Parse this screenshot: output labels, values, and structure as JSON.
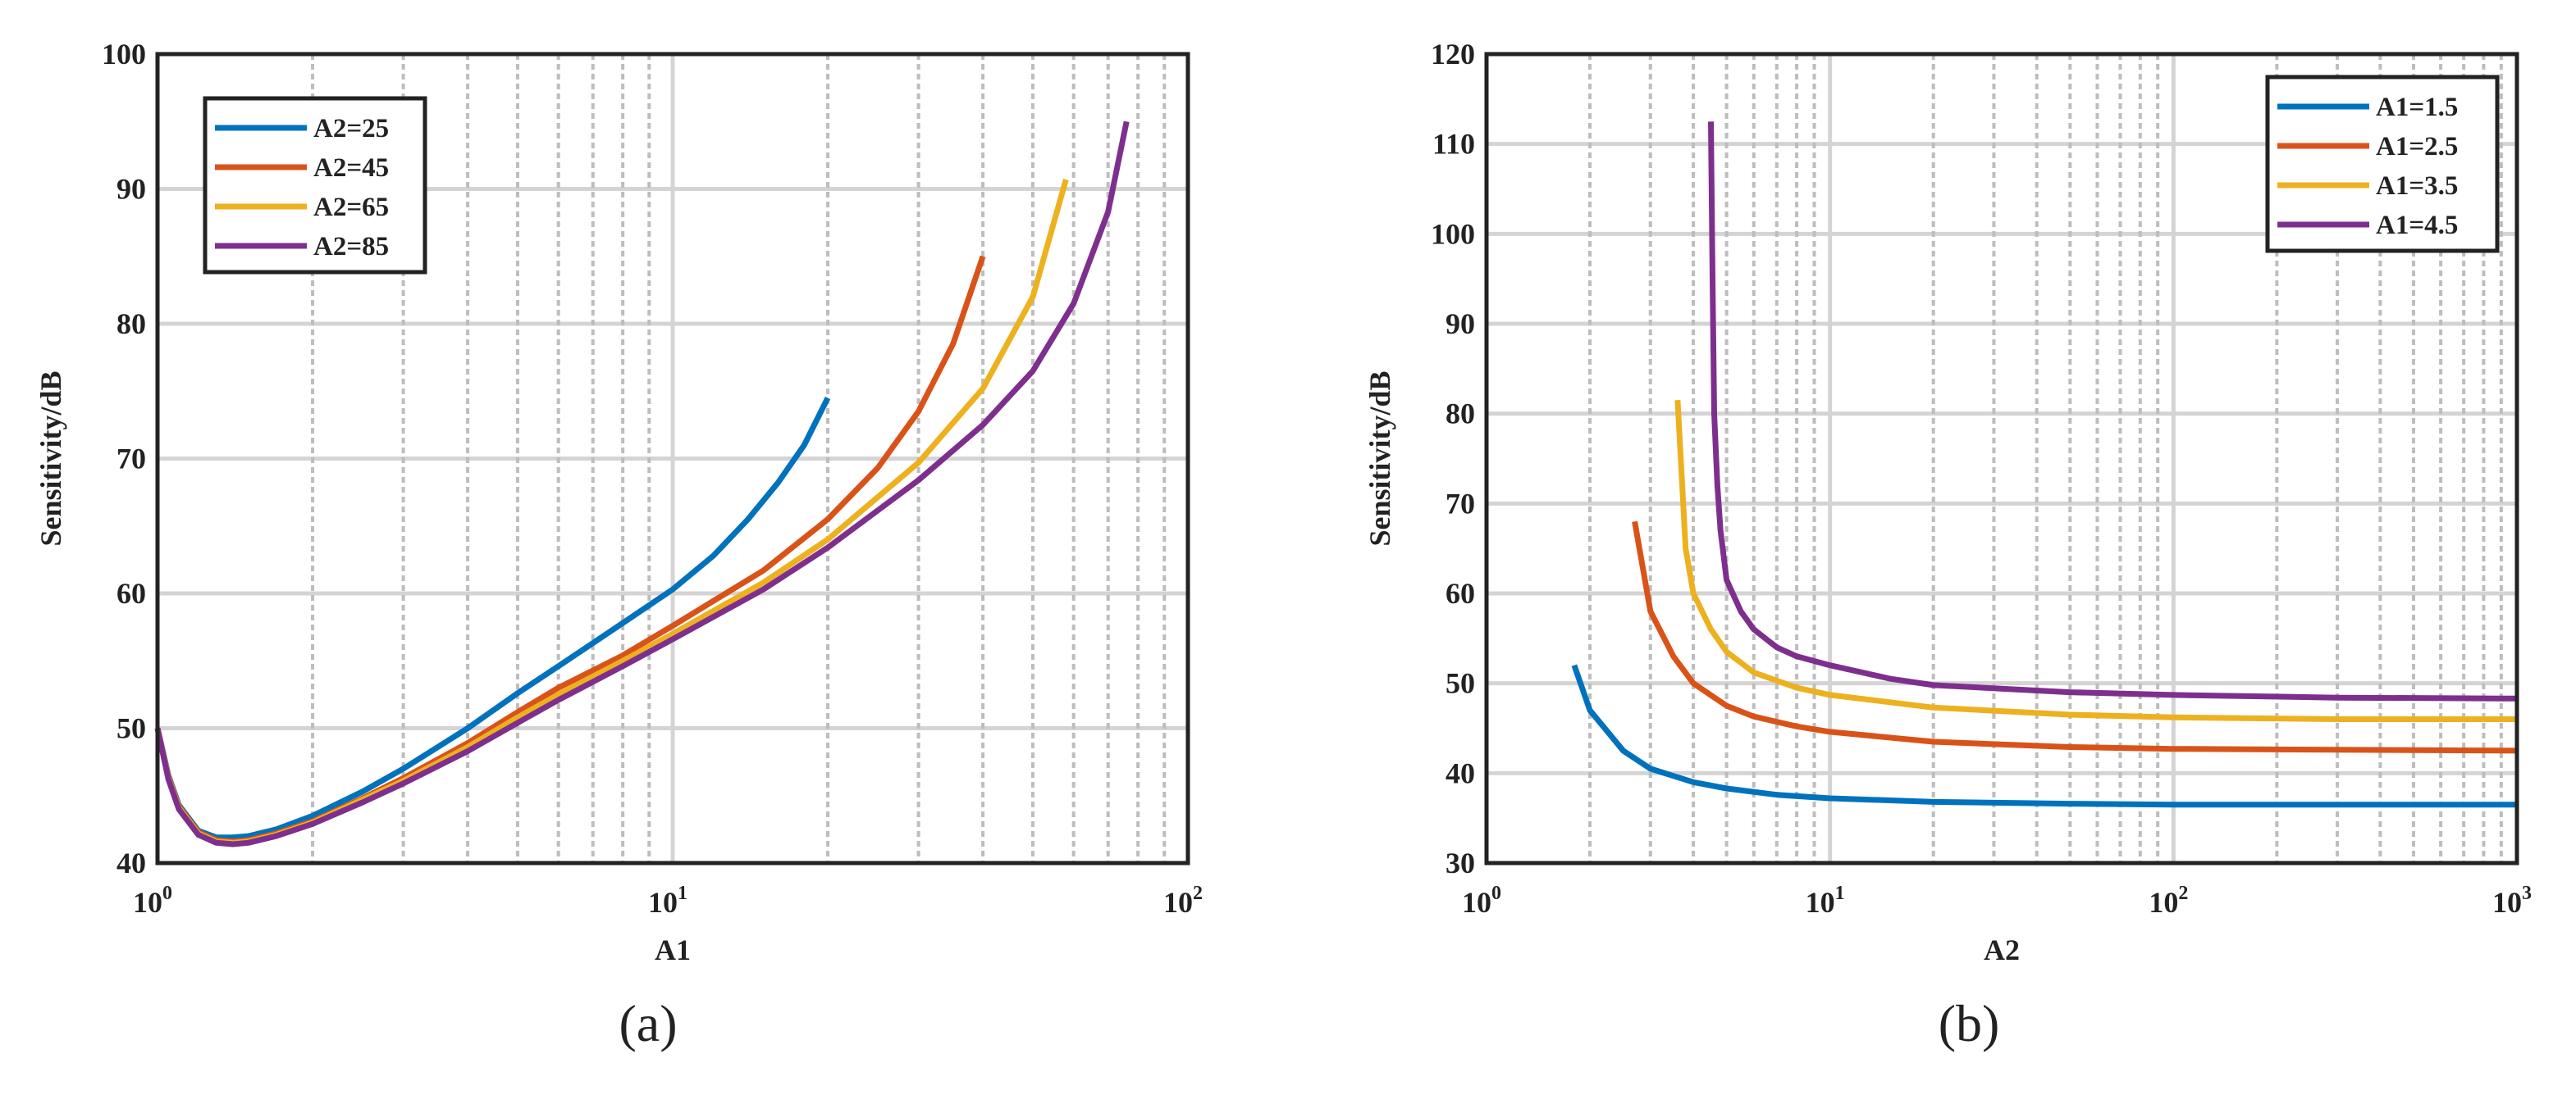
{
  "chart_data": [
    {
      "type": "line",
      "panel_label": "(a)",
      "xlabel": "A1",
      "ylabel": "Sensitivity/dB",
      "xscale": "log",
      "xlim": [
        1,
        100
      ],
      "ylim": [
        40,
        100
      ],
      "y_ticks": [
        40,
        50,
        60,
        70,
        80,
        90,
        100
      ],
      "x_ticks": [
        {
          "base": "10",
          "exp": "0"
        },
        {
          "base": "10",
          "exp": "1"
        },
        {
          "base": "10",
          "exp": "2"
        }
      ],
      "grid": true,
      "legend_position": "top-left",
      "series": [
        {
          "name": "A2=25",
          "color": "#0072BD",
          "x": [
            1,
            1.05,
            1.1,
            1.2,
            1.3,
            1.4,
            1.5,
            1.7,
            2,
            2.5,
            3,
            4,
            5,
            6,
            8,
            10,
            12,
            14,
            16,
            18,
            20
          ],
          "y": [
            50,
            46.5,
            44.3,
            42.4,
            41.9,
            41.9,
            42,
            42.5,
            43.5,
            45.3,
            47,
            50,
            52.6,
            54.6,
            57.8,
            60.3,
            62.8,
            65.5,
            68.2,
            71,
            74.5
          ]
        },
        {
          "name": "A2=45",
          "color": "#D95319",
          "x": [
            1,
            1.05,
            1.1,
            1.2,
            1.3,
            1.4,
            1.5,
            1.7,
            2,
            2.5,
            3,
            4,
            5,
            6,
            8,
            10,
            15,
            20,
            25,
            30,
            35,
            40
          ],
          "y": [
            50,
            46.4,
            44.2,
            42.3,
            41.7,
            41.6,
            41.7,
            42.2,
            43.1,
            44.8,
            46.3,
            48.9,
            51.2,
            53,
            55.4,
            57.6,
            61.7,
            65.5,
            69.3,
            73.5,
            78.5,
            85
          ]
        },
        {
          "name": "A2=65",
          "color": "#EDB120",
          "x": [
            1,
            1.05,
            1.1,
            1.2,
            1.3,
            1.4,
            1.5,
            1.7,
            2,
            2.5,
            3,
            4,
            5,
            6,
            8,
            10,
            15,
            20,
            30,
            40,
            50,
            58
          ],
          "y": [
            50,
            46.3,
            44.1,
            42.2,
            41.6,
            41.5,
            41.6,
            42.1,
            43,
            44.7,
            46.1,
            48.6,
            50.8,
            52.5,
            55,
            57,
            60.8,
            64,
            69.7,
            75.2,
            82,
            90.7
          ]
        },
        {
          "name": "A2=85",
          "color": "#7E2F8E",
          "x": [
            1,
            1.05,
            1.1,
            1.2,
            1.3,
            1.4,
            1.5,
            1.7,
            2,
            2.5,
            3,
            4,
            5,
            6,
            8,
            10,
            15,
            20,
            30,
            40,
            50,
            60,
            70,
            76
          ],
          "y": [
            50,
            46.2,
            44,
            42.1,
            41.5,
            41.4,
            41.5,
            42,
            42.9,
            44.5,
            45.9,
            48.3,
            50.4,
            52.1,
            54.6,
            56.6,
            60.3,
            63.4,
            68.4,
            72.5,
            76.5,
            81.5,
            88.3,
            95
          ]
        }
      ],
      "legend": [
        "A2=25",
        "A2=45",
        "A2=65",
        "A2=85"
      ]
    },
    {
      "type": "line",
      "panel_label": "(b)",
      "xlabel": "A2",
      "ylabel": "Sensitivity/dB",
      "xscale": "log",
      "xlim": [
        1,
        1000
      ],
      "ylim": [
        30,
        120
      ],
      "y_ticks": [
        30,
        40,
        50,
        60,
        70,
        80,
        90,
        100,
        110,
        120
      ],
      "x_ticks": [
        {
          "base": "10",
          "exp": "0"
        },
        {
          "base": "10",
          "exp": "1"
        },
        {
          "base": "10",
          "exp": "2"
        },
        {
          "base": "10",
          "exp": "3"
        }
      ],
      "grid": true,
      "legend_position": "top-right",
      "series": [
        {
          "name": "A1=1.5",
          "color": "#0072BD",
          "x": [
            1.8,
            2,
            2.5,
            3,
            4,
            5,
            7,
            10,
            20,
            50,
            100,
            300,
            1000
          ],
          "y": [
            52,
            47,
            42.5,
            40.5,
            39,
            38.3,
            37.6,
            37.2,
            36.8,
            36.6,
            36.5,
            36.5,
            36.5
          ]
        },
        {
          "name": "A1=2.5",
          "color": "#D95319",
          "x": [
            2.7,
            3,
            3.5,
            4,
            5,
            6,
            8,
            10,
            20,
            50,
            100,
            300,
            1000
          ],
          "y": [
            68,
            58,
            53,
            50,
            47.5,
            46.3,
            45.2,
            44.6,
            43.5,
            42.9,
            42.7,
            42.6,
            42.5
          ]
        },
        {
          "name": "A1=3.5",
          "color": "#EDB120",
          "x": [
            3.6,
            3.8,
            4,
            4.5,
            5,
            6,
            8,
            10,
            20,
            50,
            100,
            300,
            1000
          ],
          "y": [
            81.5,
            65,
            60,
            56,
            53.5,
            51.2,
            49.5,
            48.7,
            47.3,
            46.5,
            46.2,
            46,
            46
          ]
        },
        {
          "name": "A1=4.5",
          "color": "#7E2F8E",
          "x": [
            4.5,
            4.55,
            4.6,
            4.7,
            4.8,
            5,
            5.5,
            6,
            7,
            8,
            10,
            15,
            20,
            50,
            100,
            300,
            1000
          ],
          "y": [
            112.5,
            95,
            80,
            72,
            67,
            61.5,
            58,
            56,
            54,
            53,
            52,
            50.5,
            49.8,
            49,
            48.7,
            48.4,
            48.3
          ]
        }
      ],
      "legend": [
        "A1=1.5",
        "A1=2.5",
        "A1=3.5",
        "A1=4.5"
      ]
    }
  ]
}
